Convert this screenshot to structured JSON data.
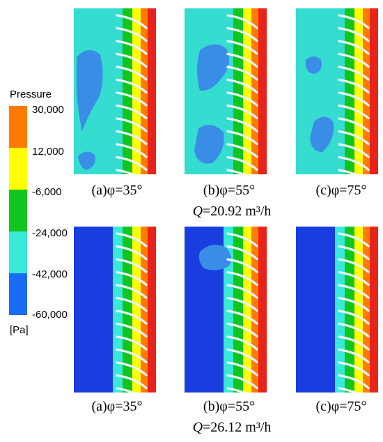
{
  "legend": {
    "title": "Pressure",
    "unit": "[Pa]",
    "ticks": [
      "30,000",
      "12,000",
      "-6,000",
      "-24,000",
      "-42,000",
      "-60,000"
    ],
    "bands": [
      "#ff7a00",
      "#ffff00",
      "#11c51f",
      "#38e8d8",
      "#1a6cf5"
    ]
  },
  "colors": {
    "region_top": "#35dcd0",
    "region_bottom": "#1a3de0",
    "low_pocket": "#3a8de6",
    "blade": "#eaf3f6",
    "wall_red": "#e8231b"
  },
  "rows": [
    {
      "flow_label": "Q",
      "flow_value": "=20.92 m³/h",
      "panels": [
        {
          "caption": "(a)φ=35°"
        },
        {
          "caption": "(b)φ=55°"
        },
        {
          "caption": "(c)φ=75°"
        }
      ]
    },
    {
      "flow_label": "Q",
      "flow_value": "=26.12 m³/h",
      "panels": [
        {
          "caption": "(a)φ=35°"
        },
        {
          "caption": "(b)φ=55°"
        },
        {
          "caption": "(c)φ=75°"
        }
      ]
    }
  ]
}
